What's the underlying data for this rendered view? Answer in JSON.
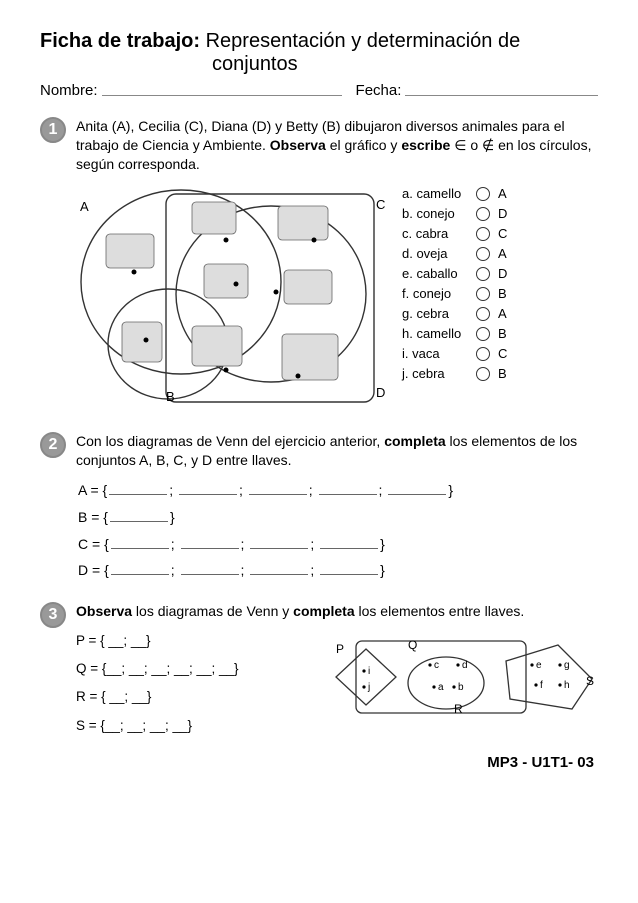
{
  "header": {
    "prefix": "Ficha de trabajo:",
    "title1": "Representación y determinación de",
    "title2": "conjuntos",
    "nameLabel": "Nombre:",
    "dateLabel": "Fecha:"
  },
  "ex1": {
    "num": "1",
    "instrA": "Anita (A), Cecilia (C), Diana (D) y Betty (B) dibujaron diversos animales para el trabajo de Ciencia y Ambiente. ",
    "instrB_bold": "Observa",
    "instrC": " el gráfico y ",
    "instrD_bold": "escribe",
    "instrE": " ∈ o ∉ en los círculos, según corresponda.",
    "labels": {
      "A": "A",
      "B": "B",
      "C": "C",
      "D": "D"
    },
    "keys": [
      {
        "k": "a. camello",
        "s": "A"
      },
      {
        "k": "b. conejo",
        "s": "D"
      },
      {
        "k": "c. cabra",
        "s": "C"
      },
      {
        "k": "d. oveja",
        "s": "A"
      },
      {
        "k": "e. caballo",
        "s": "D"
      },
      {
        "k": "f. conejo",
        "s": "B"
      },
      {
        "k": "g. cebra",
        "s": "A"
      },
      {
        "k": "h. camello",
        "s": "B"
      },
      {
        "k": "i. vaca",
        "s": "C"
      },
      {
        "k": "j. cebra",
        "s": "B"
      }
    ]
  },
  "ex2": {
    "num": "2",
    "instrA": "Con los diagramas de Venn del ejercicio anterior, ",
    "instrB_bold": "completa",
    "instrC": " los elementos de los conjuntos A, B, C, y D entre llaves.",
    "lines": [
      {
        "label": "A = {",
        "slots": 5,
        "sep": "; ",
        "end": "}"
      },
      {
        "label": "B = {",
        "slots": 1,
        "sep": "",
        "end": "}"
      },
      {
        "label": "C = {",
        "slots": 4,
        "sep": "; ",
        "end": "}"
      },
      {
        "label": "D = {",
        "slots": 4,
        "sep": "; ",
        "end": "}"
      }
    ],
    "slotWidth": 58
  },
  "ex3": {
    "num": "3",
    "instrA_bold": "Observa",
    "instrB": " los diagramas de Venn y ",
    "instrC_bold": "completa",
    "instrD": " los elementos entre llaves.",
    "lines": [
      "P = { __; __}",
      "Q = {__; __; __; __; __; __}",
      "R = { __; __}",
      "S = {__; __; __; __}"
    ],
    "diagramLabels": {
      "P": "P",
      "Q": "Q",
      "R": "R",
      "S": "S"
    },
    "points": {
      "a": "a",
      "b": "b",
      "c": "c",
      "d": "d",
      "e": "e",
      "f": "f",
      "g": "g",
      "h": "h",
      "i": "i",
      "j": "j"
    }
  },
  "footer": "MP3 - U1T1- 03",
  "colors": {
    "text": "#000000",
    "stroke": "#333333",
    "badge": "#999999",
    "underline": "#888888"
  }
}
